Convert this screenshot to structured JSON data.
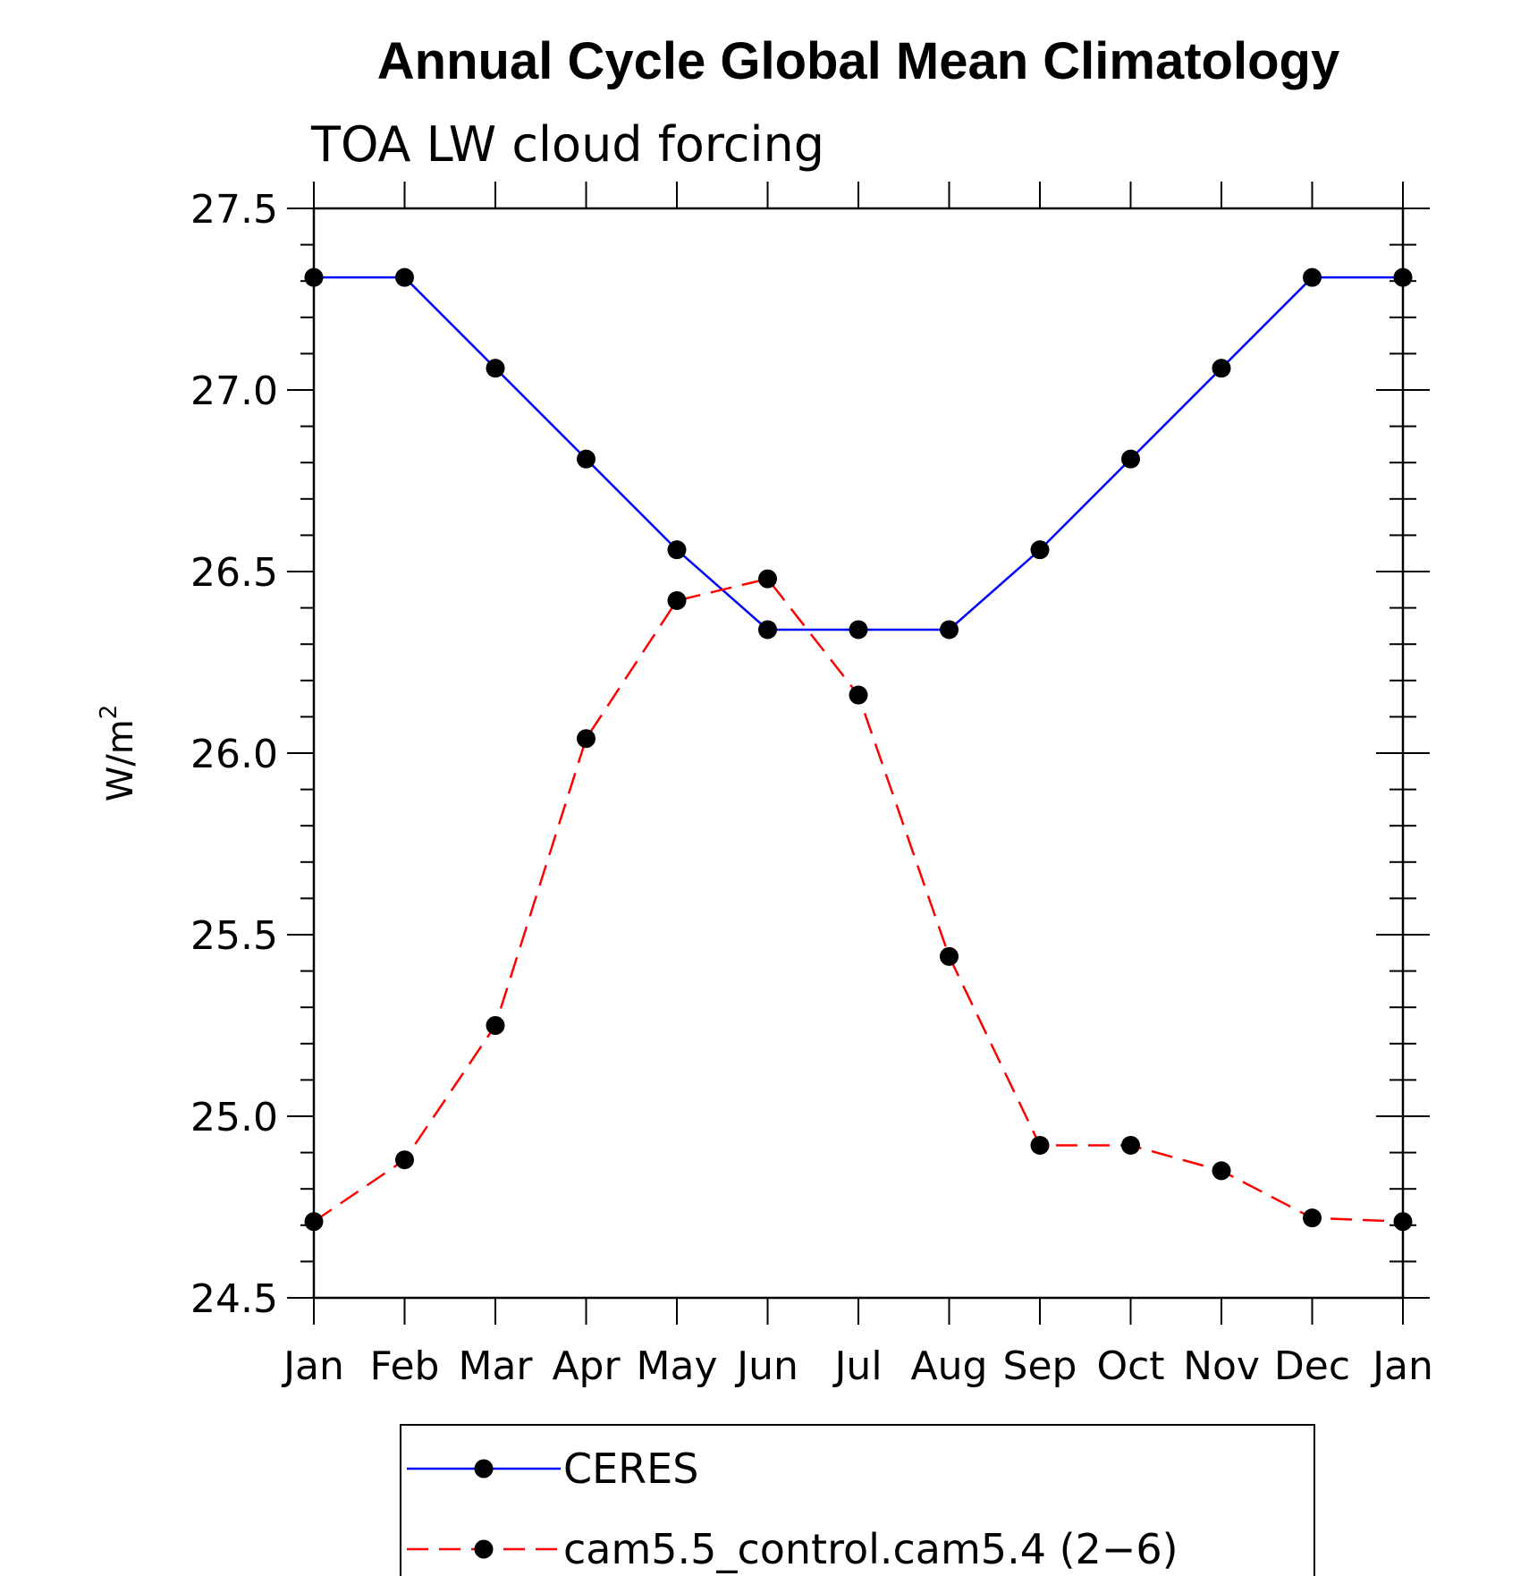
{
  "chart_data": {
    "type": "line",
    "title": "Annual Cycle Global Mean Climatology",
    "subtitle": "TOA LW cloud forcing",
    "ylabel": "W/m",
    "ylabel_superscript": "2",
    "xlabel": "",
    "categories": [
      "Jan",
      "Feb",
      "Mar",
      "Apr",
      "May",
      "Jun",
      "Jul",
      "Aug",
      "Sep",
      "Oct",
      "Nov",
      "Dec",
      "Jan"
    ],
    "ylim": [
      24.5,
      27.5
    ],
    "yticks": [
      "24.5",
      "25.0",
      "25.5",
      "26.0",
      "26.5",
      "27.0",
      "27.5"
    ],
    "grid": false,
    "legend_position": "bottom",
    "series": [
      {
        "name": "CERES",
        "color": "#0000ff",
        "line_style": "solid",
        "marker": "filled-circle",
        "values": [
          27.31,
          27.31,
          27.06,
          26.81,
          26.56,
          26.34,
          26.34,
          26.34,
          26.56,
          26.81,
          27.06,
          27.31,
          27.31
        ]
      },
      {
        "name": "cam5.5_control.cam5.4 (2−6)",
        "color": "#ff0000",
        "line_style": "dashed",
        "marker": "filled-circle",
        "values": [
          24.71,
          24.88,
          25.25,
          26.04,
          26.42,
          26.48,
          26.16,
          25.44,
          24.92,
          24.92,
          24.85,
          24.72,
          24.71
        ]
      }
    ]
  }
}
